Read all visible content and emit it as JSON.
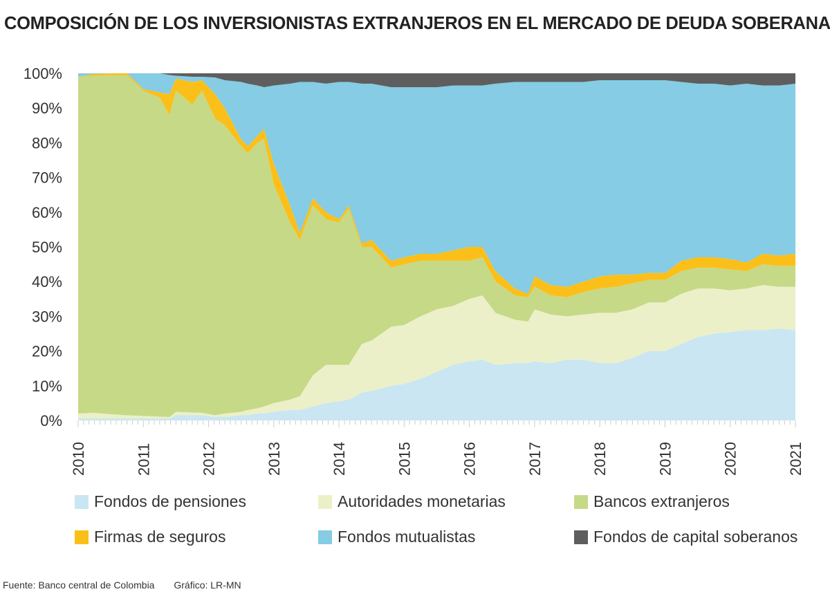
{
  "title": "COMPOSICIÓN DE LOS INVERSIONISTAS EXTRANJEROS EN EL MERCADO DE DEUDA SOBERANA",
  "footer": {
    "source": "Fuente: Banco central de Colombia",
    "credit": "Gráfico: LR-MN"
  },
  "chart_data": {
    "type": "area",
    "stacked": true,
    "title": "COMPOSICIÓN DE LOS INVERSIONISTAS EXTRANJEROS EN EL MERCADO DE DEUDA SOBERANA",
    "xlabel": "",
    "ylabel": "",
    "xlim": [
      2010,
      2021
    ],
    "ylim": [
      0,
      100
    ],
    "x_ticks": [
      "2010",
      "2011",
      "2012",
      "2013",
      "2014",
      "2015",
      "2016",
      "2017",
      "2018",
      "2019",
      "2020",
      "2021"
    ],
    "y_ticks": [
      "0%",
      "10%",
      "20%",
      "30%",
      "40%",
      "50%",
      "60%",
      "70%",
      "80%",
      "90%",
      "100%"
    ],
    "legend_position": "bottom",
    "x": [
      2010.0,
      2010.25,
      2010.5,
      2010.75,
      2011.0,
      2011.25,
      2011.4,
      2011.5,
      2011.75,
      2011.9,
      2012.1,
      2012.25,
      2012.5,
      2012.6,
      2012.75,
      2012.85,
      2013.0,
      2013.25,
      2013.4,
      2013.6,
      2013.8,
      2014.0,
      2014.15,
      2014.35,
      2014.5,
      2014.8,
      2015.0,
      2015.25,
      2015.5,
      2015.75,
      2016.0,
      2016.2,
      2016.4,
      2016.7,
      2016.9,
      2017.0,
      2017.25,
      2017.5,
      2017.75,
      2018.0,
      2018.25,
      2018.5,
      2018.75,
      2019.0,
      2019.25,
      2019.5,
      2019.75,
      2020.0,
      2020.25,
      2020.5,
      2020.75,
      2021.0
    ],
    "series": [
      {
        "name": "Fondos de pensiones",
        "color": "#c9e6f2",
        "values": [
          0.5,
          0.5,
          0.5,
          0.5,
          0.5,
          0.5,
          0.5,
          1.5,
          1.5,
          1.5,
          1,
          1,
          1.5,
          1.5,
          2,
          2,
          2.5,
          3,
          3,
          4,
          5,
          5.5,
          6,
          8,
          8.5,
          10,
          10.5,
          12,
          14,
          16,
          17,
          17.5,
          16,
          16.5,
          16.5,
          17,
          16.5,
          17.5,
          17.5,
          16.5,
          16.5,
          18,
          20,
          20,
          22,
          24,
          25,
          25.5,
          26,
          26,
          26.5,
          26
        ]
      },
      {
        "name": "Autoridades monetarias",
        "color": "#ecf0c8",
        "values": [
          1.5,
          1.7,
          1.3,
          1,
          0.8,
          0.6,
          0.5,
          1,
          0.8,
          0.7,
          0.5,
          1,
          1,
          1.5,
          1.5,
          2,
          2.5,
          3,
          4,
          9,
          11,
          10.5,
          10,
          14,
          14.5,
          17,
          17,
          18,
          18,
          17,
          18,
          18.5,
          15,
          12.5,
          12,
          15,
          14,
          12.5,
          13,
          14.5,
          14.5,
          14,
          14,
          14,
          14.5,
          14,
          13,
          12,
          12,
          13,
          12,
          12.5
        ]
      },
      {
        "name": "Bancos extranjeros",
        "color": "#c6d987",
        "values": [
          97,
          97.1,
          97.7,
          98,
          93.7,
          91.9,
          87,
          92.5,
          88.7,
          92.8,
          85.5,
          83,
          76.5,
          74,
          76.5,
          77,
          63,
          51,
          45,
          49,
          42,
          41,
          45,
          28,
          27,
          17,
          17.5,
          16,
          14,
          13,
          11,
          11,
          9,
          7,
          7,
          6.5,
          5.5,
          5.5,
          6.5,
          7,
          7.5,
          7.5,
          6.5,
          6.5,
          6.5,
          6,
          6,
          6,
          5,
          6,
          6,
          6
        ]
      },
      {
        "name": "Firmas de seguros",
        "color": "#fbbf1a",
        "values": [
          0,
          0.5,
          0.5,
          0.5,
          0.5,
          1.5,
          6,
          3.5,
          6.5,
          3,
          7,
          5,
          2,
          2,
          2,
          3,
          6,
          5,
          2,
          2,
          2,
          1,
          1,
          1,
          2,
          2,
          2,
          2,
          2,
          3,
          4,
          3,
          3,
          2,
          1,
          3,
          3,
          3,
          3,
          3.5,
          3.5,
          2.5,
          2,
          2,
          3,
          3,
          3,
          3,
          2.5,
          3,
          3,
          3.5
        ]
      },
      {
        "name": "Fondos mutualistas",
        "color": "#85cce4",
        "values": [
          1,
          0.2,
          0,
          0,
          4.5,
          5.5,
          5.5,
          0.8,
          1.5,
          1,
          4.8,
          8,
          16.5,
          18,
          14.5,
          12,
          22.5,
          35,
          43.5,
          33.5,
          37,
          39.5,
          35.5,
          46,
          45,
          50,
          49,
          48,
          48,
          47.5,
          46.5,
          46.5,
          54,
          59.5,
          61,
          56,
          58.5,
          59,
          57.5,
          56.5,
          56,
          56,
          55.5,
          55.5,
          51.5,
          50,
          50,
          50,
          51.5,
          48.5,
          49,
          49
        ]
      },
      {
        "name": "Fondos de capital soberanos",
        "color": "#5e5e5e",
        "values": [
          0,
          0,
          0,
          0,
          0,
          0,
          0.5,
          0.7,
          1,
          1,
          1.2,
          2,
          2.5,
          3,
          3.5,
          4,
          3.5,
          3,
          2.5,
          2.5,
          3,
          2.5,
          2.5,
          3,
          3,
          4,
          4,
          4,
          4,
          3.5,
          3.5,
          3.5,
          3,
          2.5,
          2.5,
          2.5,
          2.5,
          2.5,
          2.5,
          2,
          2,
          2,
          2,
          2,
          2.5,
          3,
          3,
          3.5,
          3,
          3.5,
          3.5,
          3
        ]
      }
    ]
  }
}
